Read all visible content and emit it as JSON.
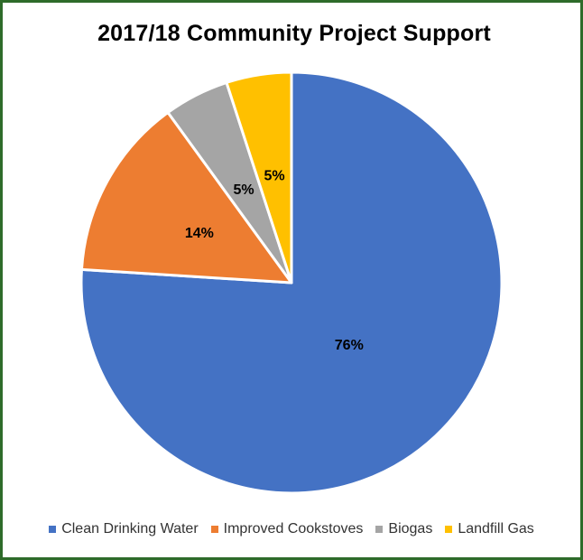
{
  "chart_data": {
    "type": "pie",
    "title": "2017/18 Community Project Support",
    "categories": [
      "Clean Drinking Water",
      "Improved Cookstoves",
      "Biogas",
      "Landfill Gas"
    ],
    "values": [
      76,
      14,
      5,
      5
    ],
    "labels": [
      "76%",
      "14%",
      "5%",
      "5%"
    ],
    "colors": [
      "#4472c4",
      "#ed7d31",
      "#a5a5a5",
      "#ffc000"
    ],
    "start_angle": "12 o'clock",
    "direction": "clockwise",
    "legend": "bottom"
  }
}
